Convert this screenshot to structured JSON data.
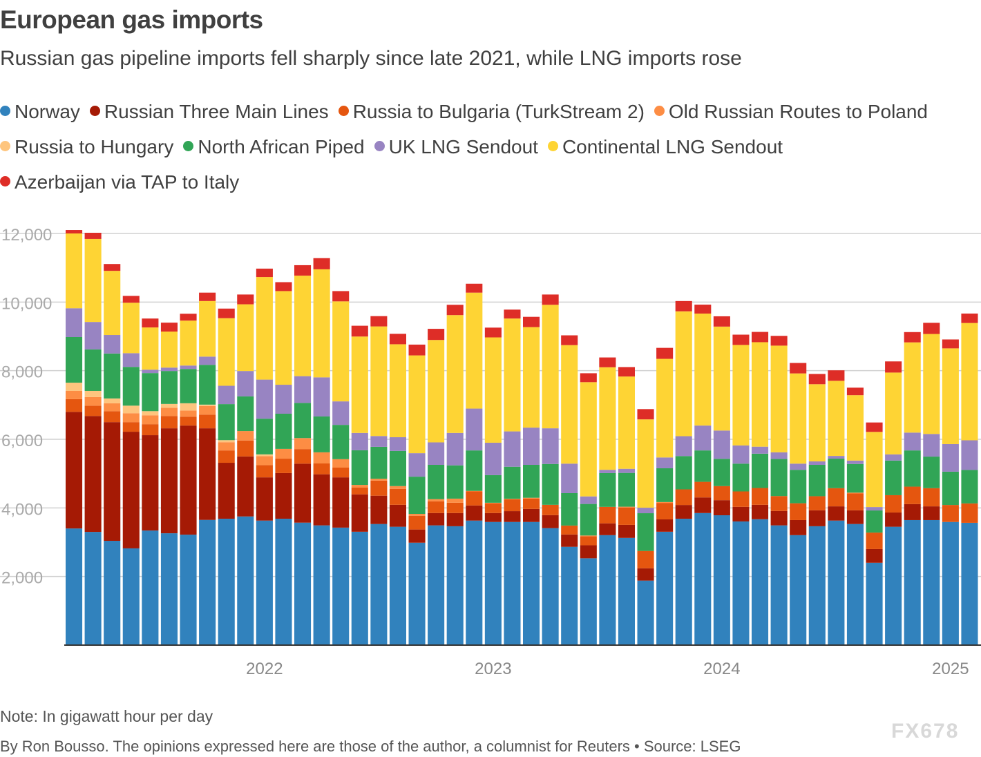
{
  "header": {
    "title": "European gas imports",
    "subtitle": "Russian gas pipeline imports fell sharply since late 2021, while LNG imports rose"
  },
  "footer": {
    "note": "Note: In gigawatt hour per day",
    "credit": "By Ron Bousso. The opinions expressed here are those of the author, a columnist for Reuters • Source: LSEG",
    "watermark": "FX678"
  },
  "chart_data": {
    "type": "bar",
    "stacked": true,
    "title": "European gas imports",
    "xlabel": "",
    "ylabel": "",
    "ylim": [
      0,
      12000
    ],
    "yticks": [
      2000,
      4000,
      6000,
      8000,
      10000,
      12000
    ],
    "ytick_labels": [
      "2,000",
      "4,000",
      "6,000",
      "8,000",
      "10,000",
      "12,000"
    ],
    "xtick_labels": [
      {
        "index": 10,
        "label": "2022"
      },
      {
        "index": 22,
        "label": "2023"
      },
      {
        "index": 34,
        "label": "2024"
      },
      {
        "index": 46,
        "label": "2025"
      }
    ],
    "grid": true,
    "legend_placement": "top",
    "categories": [
      "2021-03",
      "2021-04",
      "2021-05",
      "2021-06",
      "2021-07",
      "2021-08",
      "2021-09",
      "2021-10",
      "2021-11",
      "2021-12",
      "2022-01",
      "2022-02",
      "2022-03",
      "2022-04",
      "2022-05",
      "2022-06",
      "2022-07",
      "2022-08",
      "2022-09",
      "2022-10",
      "2022-11",
      "2022-12",
      "2023-01",
      "2023-02",
      "2023-03",
      "2023-04",
      "2023-05",
      "2023-06",
      "2023-07",
      "2023-08",
      "2023-09",
      "2023-10",
      "2023-11",
      "2023-12",
      "2024-01",
      "2024-02",
      "2024-03",
      "2024-04",
      "2024-05",
      "2024-06",
      "2024-07",
      "2024-08",
      "2024-09",
      "2024-10",
      "2024-11",
      "2024-12",
      "2025-01",
      "2025-02"
    ],
    "series": [
      {
        "name": "Norway",
        "color": "#3182bd",
        "values": [
          3400,
          3300,
          3040,
          2820,
          3340,
          3260,
          3220,
          3650,
          3685,
          3750,
          3630,
          3685,
          3570,
          3490,
          3425,
          3305,
          3530,
          3450,
          2985,
          3490,
          3465,
          3630,
          3590,
          3590,
          3590,
          3410,
          2865,
          2530,
          3205,
          3125,
          1880,
          3305,
          3685,
          3850,
          3785,
          3605,
          3670,
          3490,
          3205,
          3465,
          3630,
          3530,
          2400,
          3450,
          3645,
          3645,
          3590,
          3565
        ]
      },
      {
        "name": "Russian Three Main Lines",
        "color": "#a51a05",
        "values": [
          3400,
          3380,
          3460,
          3400,
          2780,
          3060,
          3180,
          2670,
          1630,
          1750,
          1260,
          1330,
          1720,
          1490,
          1465,
          1090,
          825,
          640,
          385,
          360,
          385,
          440,
          260,
          315,
          380,
          380,
          360,
          380,
          345,
          380,
          360,
          360,
          400,
          455,
          440,
          425,
          420,
          420,
          440,
          465,
          415,
          400,
          400,
          415,
          465,
          400,
          0,
          0
        ]
      },
      {
        "name": "Russia to Bulgaria (TurkStream 2)",
        "color": "#e5560f",
        "values": [
          370,
          300,
          320,
          280,
          320,
          360,
          260,
          400,
          360,
          465,
          360,
          420,
          425,
          315,
          285,
          195,
          440,
          465,
          400,
          340,
          300,
          410,
          285,
          345,
          300,
          300,
          260,
          260,
          480,
          505,
          505,
          480,
          455,
          455,
          410,
          450,
          490,
          435,
          490,
          410,
          530,
          490,
          480,
          505,
          510,
          530,
          495,
          565
        ]
      },
      {
        "name": "Old Russian Routes to Poland",
        "color": "#fd8d44",
        "values": [
          240,
          250,
          230,
          260,
          260,
          240,
          180,
          250,
          240,
          275,
          260,
          285,
          320,
          325,
          245,
          80,
          55,
          80,
          55,
          65,
          120,
          15,
          15,
          15,
          25,
          0,
          0,
          25,
          0,
          25,
          0,
          25,
          0,
          0,
          0,
          0,
          0,
          0,
          0,
          0,
          0,
          25,
          0,
          0,
          0,
          0,
          0,
          0
        ]
      },
      {
        "name": "Russia to Hungary",
        "color": "#fec57e",
        "values": [
          240,
          180,
          140,
          220,
          120,
          110,
          210,
          40,
          60,
          0,
          50,
          0,
          0,
          0,
          0,
          0,
          0,
          0,
          0,
          0,
          0,
          0,
          0,
          0,
          0,
          0,
          0,
          0,
          0,
          0,
          0,
          0,
          0,
          0,
          0,
          0,
          0,
          0,
          0,
          0,
          0,
          0,
          0,
          0,
          0,
          0,
          0,
          0
        ]
      },
      {
        "name": "North African Piped",
        "color": "#31a556",
        "values": [
          1330,
          1210,
          1310,
          1130,
          1110,
          960,
          1000,
          1160,
          1050,
          1010,
          1040,
          1025,
          1025,
          1045,
          1000,
          1010,
          930,
          1025,
          1085,
          1000,
          970,
          1180,
          805,
          935,
          960,
          1190,
          945,
          920,
          985,
          985,
          1100,
          985,
          970,
          915,
          795,
          810,
          1000,
          1080,
          975,
          915,
          860,
          835,
          645,
          1010,
          1055,
          920,
          970,
          975
        ]
      },
      {
        "name": "UK LNG Sendout",
        "color": "#9884c2",
        "values": [
          840,
          800,
          540,
          400,
          100,
          100,
          100,
          240,
          535,
          740,
          1140,
          845,
          780,
          1140,
          685,
          505,
          315,
          400,
          685,
          655,
          945,
          1220,
          945,
          1030,
          1085,
          1040,
          860,
          220,
          95,
          120,
          160,
          315,
          580,
          725,
          825,
          530,
          205,
          195,
          180,
          100,
          80,
          100,
          100,
          180,
          520,
          660,
          805,
          865
        ]
      },
      {
        "name": "Continental LNG Sendout",
        "color": "#fed434",
        "values": [
          2180,
          2420,
          1870,
          1470,
          1230,
          1050,
          1310,
          1620,
          1970,
          1945,
          2990,
          2730,
          2930,
          3150,
          2915,
          2810,
          3195,
          2710,
          2850,
          2985,
          3435,
          3380,
          3070,
          3290,
          2930,
          3600,
          3455,
          3330,
          2990,
          2690,
          2575,
          2875,
          3640,
          3265,
          3030,
          2930,
          3045,
          3110,
          2630,
          2250,
          2190,
          1905,
          2190,
          2385,
          2630,
          2915,
          2790,
          3420
        ]
      },
      {
        "name": "Azerbaijan via TAP to Italy",
        "color": "#de2d27",
        "values": [
          100,
          180,
          200,
          200,
          260,
          260,
          200,
          245,
          280,
          285,
          245,
          260,
          305,
          325,
          300,
          315,
          300,
          305,
          315,
          325,
          300,
          260,
          285,
          260,
          300,
          300,
          285,
          260,
          285,
          275,
          300,
          320,
          300,
          260,
          300,
          300,
          300,
          285,
          305,
          300,
          305,
          220,
          275,
          325,
          300,
          325,
          260,
          275
        ]
      }
    ]
  }
}
